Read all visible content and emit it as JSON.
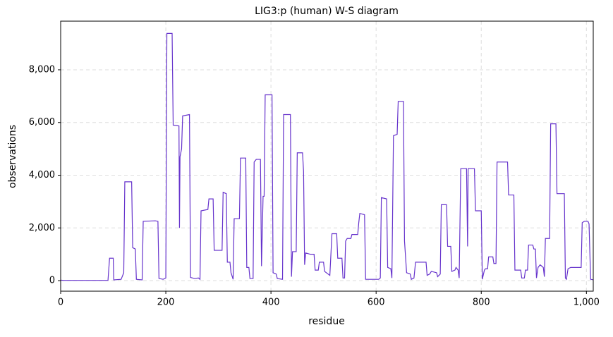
{
  "chart_data": {
    "type": "line",
    "title": "LIG3:p (human) W-S diagram",
    "xlabel": "residue",
    "ylabel": "observations",
    "x": [
      0,
      5,
      90,
      93,
      100,
      101,
      115,
      120,
      122,
      135,
      137,
      142,
      144,
      155,
      157,
      180,
      185,
      187,
      195,
      200,
      202,
      212,
      214,
      225,
      226,
      227,
      230,
      232,
      245,
      247,
      255,
      262,
      265,
      267,
      280,
      282,
      290,
      292,
      307,
      309,
      315,
      317,
      322,
      324,
      328,
      330,
      340,
      342,
      352,
      354,
      358,
      360,
      366,
      368,
      372,
      380,
      382,
      385,
      387,
      389,
      402,
      404,
      410,
      412,
      422,
      424,
      437,
      439,
      441,
      448,
      450,
      460,
      462,
      464,
      466,
      475,
      482,
      484,
      490,
      492,
      500,
      502,
      512,
      516,
      525,
      527,
      535,
      537,
      540,
      542,
      545,
      552,
      554,
      565,
      567,
      569,
      578,
      580,
      605,
      608,
      610,
      620,
      622,
      628,
      630,
      633,
      640,
      642,
      652,
      654,
      658,
      665,
      667,
      672,
      675,
      695,
      697,
      702,
      705,
      715,
      717,
      722,
      724,
      734,
      736,
      742,
      744,
      750,
      752,
      756,
      758,
      761,
      772,
      774,
      775,
      787,
      789,
      800,
      802,
      806,
      808,
      812,
      814,
      822,
      824,
      828,
      830,
      850,
      852,
      862,
      864,
      875,
      877,
      882,
      884,
      888,
      890,
      898,
      900,
      903,
      905,
      908,
      912,
      918,
      920,
      922,
      930,
      932,
      942,
      944,
      958,
      960,
      962,
      965,
      970,
      990,
      992,
      996,
      1003,
      1005,
      1008,
      1013
    ],
    "series": [
      {
        "name": "observations",
        "color": "#6633cc",
        "values": [
          20,
          10,
          10,
          850,
          850,
          30,
          50,
          300,
          3750,
          3750,
          1250,
          1200,
          50,
          30,
          2250,
          2270,
          2250,
          80,
          50,
          100,
          9380,
          9380,
          5900,
          5870,
          2000,
          4700,
          5000,
          6250,
          6300,
          120,
          80,
          100,
          50,
          2650,
          2700,
          3100,
          3100,
          1150,
          1150,
          3350,
          3300,
          700,
          700,
          300,
          50,
          2350,
          2350,
          4650,
          4650,
          500,
          500,
          80,
          80,
          4500,
          4600,
          4600,
          550,
          3200,
          3200,
          7050,
          7050,
          300,
          250,
          80,
          50,
          6300,
          6300,
          150,
          1100,
          1100,
          4850,
          4850,
          4150,
          600,
          1050,
          1000,
          1000,
          400,
          400,
          700,
          700,
          350,
          200,
          1780,
          1780,
          850,
          850,
          100,
          100,
          1500,
          1600,
          1600,
          1750,
          1750,
          2200,
          2550,
          2500,
          50,
          50,
          100,
          3150,
          3100,
          500,
          450,
          100,
          5500,
          5550,
          6800,
          6800,
          1500,
          300,
          250,
          50,
          100,
          700,
          700,
          200,
          250,
          350,
          300,
          150,
          250,
          2880,
          2880,
          1300,
          1300,
          350,
          400,
          500,
          400,
          100,
          4250,
          4250,
          1300,
          4250,
          4250,
          2650,
          2650,
          50,
          400,
          450,
          450,
          900,
          900,
          650,
          650,
          4500,
          4500,
          3250,
          3250,
          400,
          400,
          100,
          100,
          400,
          400,
          1350,
          1350,
          1200,
          1200,
          100,
          500,
          600,
          500,
          150,
          1600,
          1600,
          5950,
          5950,
          3300,
          3300,
          100,
          50,
          450,
          500,
          500,
          2200,
          2250,
          2250,
          2150,
          50,
          30
        ]
      }
    ],
    "xlim": [
      0,
      1013
    ],
    "ylim": [
      -400,
      9845
    ],
    "xticks": [
      0,
      200,
      400,
      600,
      800,
      {
        "value": 1000,
        "label": "1,000"
      }
    ],
    "yticks": [
      0,
      {
        "value": 2000,
        "label": "2,000"
      },
      {
        "value": 4000,
        "label": "4,000"
      },
      {
        "value": 6000,
        "label": "6,000"
      },
      {
        "value": 8000,
        "label": "8,000"
      }
    ],
    "grid": true
  }
}
